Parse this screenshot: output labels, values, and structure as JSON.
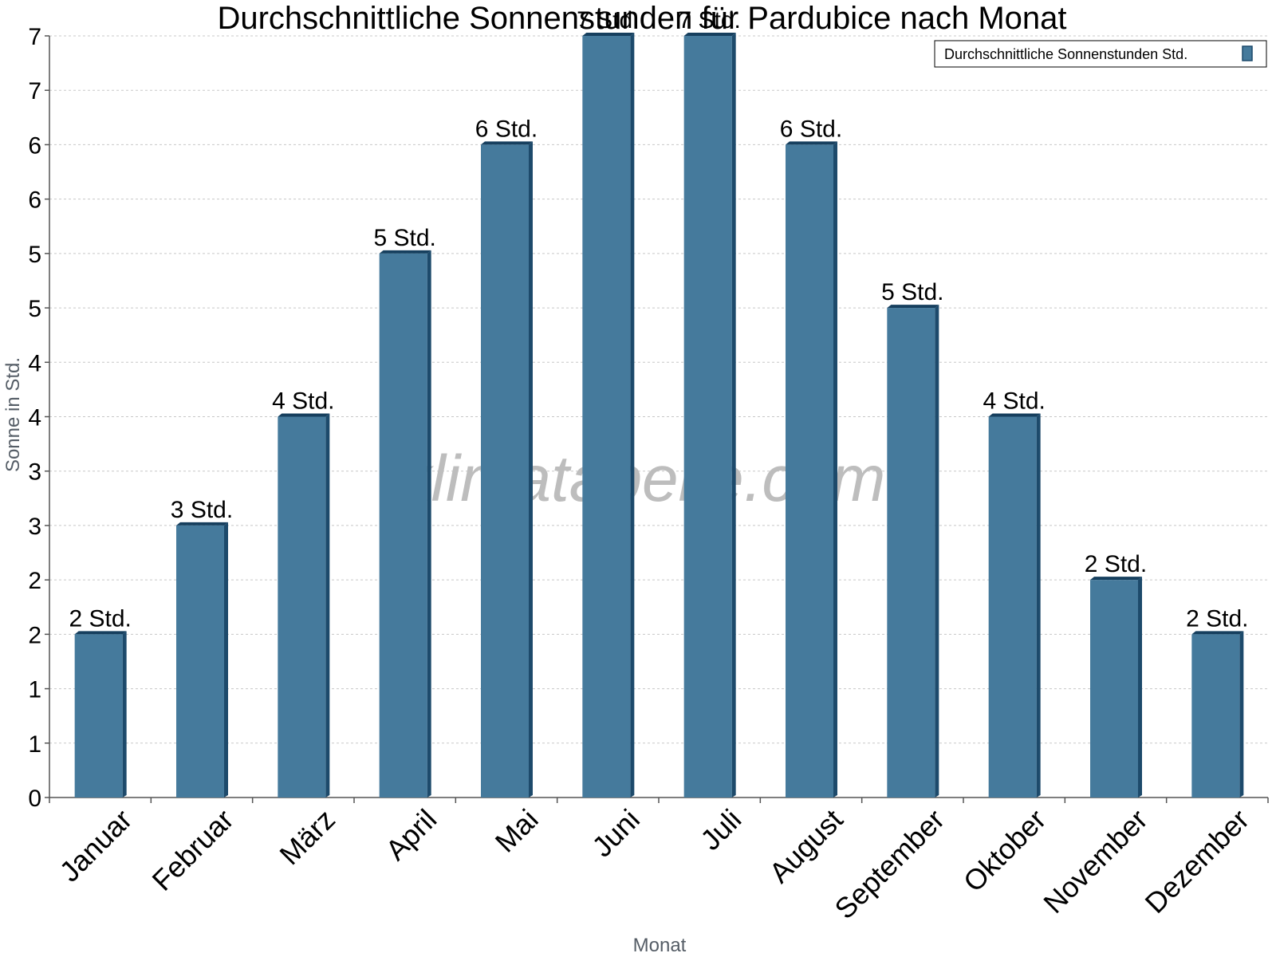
{
  "chart_data": {
    "type": "bar",
    "title": "Durchschnittliche Sonnenstunden für Pardubice nach Monat",
    "xlabel": "Monat",
    "ylabel": "Sonne in Std.",
    "categories": [
      "Januar",
      "Februar",
      "März",
      "April",
      "Mai",
      "Juni",
      "Juli",
      "August",
      "September",
      "Oktober",
      "November",
      "Dezember"
    ],
    "series": [
      {
        "name": "Durchschnittliche Sonnenstunden Std.",
        "values": [
          1.5,
          2.5,
          3.5,
          5,
          6,
          7,
          7,
          6,
          4.5,
          3.5,
          2,
          1.5
        ],
        "labels": [
          "2 Std.",
          "3 Std.",
          "4 Std.",
          "5 Std.",
          "6 Std.",
          "7 Std.",
          "7 Std.",
          "6 Std.",
          "5 Std.",
          "4 Std.",
          "2 Std.",
          "2 Std."
        ],
        "color": "#457a9c"
      }
    ],
    "ylim": [
      0,
      7
    ],
    "yticks": [
      {
        "value": 0,
        "label": "0"
      },
      {
        "value": 0.5,
        "label": "1"
      },
      {
        "value": 1,
        "label": "1"
      },
      {
        "value": 1.5,
        "label": "2"
      },
      {
        "value": 2,
        "label": "2"
      },
      {
        "value": 2.5,
        "label": "3"
      },
      {
        "value": 3,
        "label": "3"
      },
      {
        "value": 3.5,
        "label": "4"
      },
      {
        "value": 4,
        "label": "4"
      },
      {
        "value": 4.5,
        "label": "5"
      },
      {
        "value": 5,
        "label": "5"
      },
      {
        "value": 5.5,
        "label": "6"
      },
      {
        "value": 6,
        "label": "6"
      },
      {
        "value": 6.5,
        "label": "7"
      },
      {
        "value": 7,
        "label": "7"
      }
    ],
    "grid": true,
    "legend_position": "top-right",
    "watermark": "klimatabelle.com",
    "colors": {
      "bar_front": "#457a9c",
      "bar_side": "#1d4a6b",
      "bar_top": "#163f5e",
      "grid": "#c8c8c8",
      "axis": "#555555"
    }
  }
}
